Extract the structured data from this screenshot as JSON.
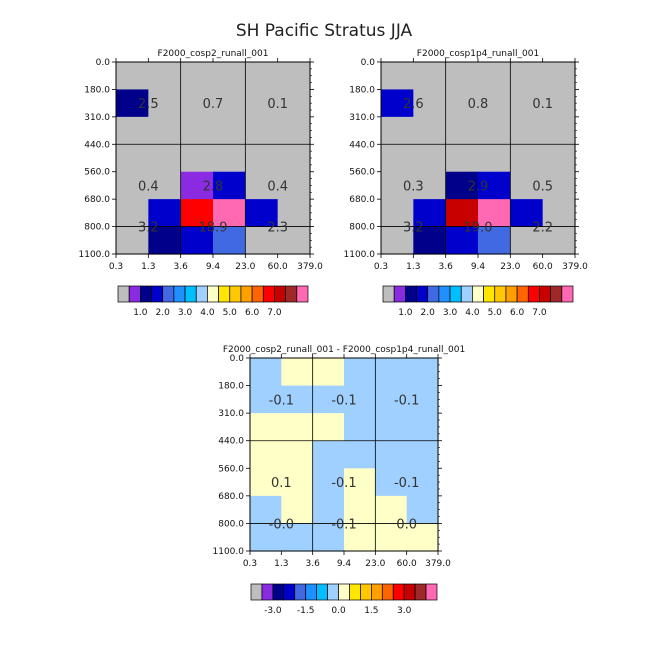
{
  "figure": {
    "title": "SH Pacific Stratus JJA"
  },
  "axes": {
    "ytick_labels": [
      "0.0",
      "180.0",
      "310.0",
      "440.0",
      "560.0",
      "680.0",
      "800.0",
      "1100.0"
    ],
    "xtick_labels": [
      "0.3",
      "1.3",
      "3.6",
      "9.4",
      "23.0",
      "60.0",
      "379.0"
    ]
  },
  "palettes": {
    "abs": [
      "#bebebe",
      "#8a2be2",
      "#00008b",
      "#0000cd",
      "#4169e1",
      "#1e90ff",
      "#00bfff",
      "#a0d0ff",
      "#ffffc8",
      "#ffe600",
      "#ffc800",
      "#ffa000",
      "#ff6400",
      "#ff0000",
      "#c80000",
      "#a02828",
      "#ff69b4"
    ],
    "diff": [
      "#bebebe",
      "#8a2be2",
      "#00008b",
      "#0000cd",
      "#4169e1",
      "#1e90ff",
      "#00bfff",
      "#a0d0ff",
      "#ffffc8",
      "#ffe600",
      "#ffc800",
      "#ffa000",
      "#ff6400",
      "#ff0000",
      "#c80000",
      "#a02828",
      "#ff69b4"
    ]
  },
  "chart_data": [
    {
      "type": "heatmap",
      "title": "F2000_cosp2_runall_001",
      "rows": [
        "0-180",
        "180-310",
        "310-440",
        "440-560",
        "560-680",
        "680-800",
        "800-1100"
      ],
      "cols": [
        "0.3-1.3",
        "1.3-3.6",
        "3.6-9.4",
        "9.4-23",
        "23-60",
        "60-379"
      ],
      "cell_colors": [
        [
          0,
          0,
          0,
          0,
          0,
          0
        ],
        [
          2,
          0,
          0,
          0,
          0,
          0
        ],
        [
          0,
          0,
          0,
          0,
          0,
          0
        ],
        [
          0,
          0,
          0,
          0,
          0,
          0
        ],
        [
          0,
          0,
          1,
          3,
          0,
          0
        ],
        [
          0,
          3,
          13,
          16,
          3,
          0
        ],
        [
          0,
          2,
          3,
          4,
          0,
          0
        ]
      ],
      "annotations": [
        {
          "row": 1.5,
          "col": 1,
          "text": "2.5"
        },
        {
          "row": 1.5,
          "col": 3,
          "text": "0.7"
        },
        {
          "row": 1.5,
          "col": 5,
          "text": "0.1"
        },
        {
          "row": 4.5,
          "col": 1,
          "text": "0.4"
        },
        {
          "row": 4.5,
          "col": 3,
          "text": "2.8"
        },
        {
          "row": 4.5,
          "col": 5,
          "text": "0.4"
        },
        {
          "row": 6.0,
          "col": 1,
          "text": "3.2"
        },
        {
          "row": 6.0,
          "col": 3,
          "text": "18.9"
        },
        {
          "row": 6.0,
          "col": 5,
          "text": "2.3"
        }
      ],
      "colorbar": {
        "labels": [
          "1.0",
          "2.0",
          "3.0",
          "4.0",
          "5.0",
          "6.0",
          "7.0"
        ]
      }
    },
    {
      "type": "heatmap",
      "title": "F2000_cosp1p4_runall_001",
      "rows": [
        "0-180",
        "180-310",
        "310-440",
        "440-560",
        "560-680",
        "680-800",
        "800-1100"
      ],
      "cols": [
        "0.3-1.3",
        "1.3-3.6",
        "3.6-9.4",
        "9.4-23",
        "23-60",
        "60-379"
      ],
      "cell_colors": [
        [
          0,
          0,
          0,
          0,
          0,
          0
        ],
        [
          3,
          0,
          0,
          0,
          0,
          0
        ],
        [
          0,
          0,
          0,
          0,
          0,
          0
        ],
        [
          0,
          0,
          0,
          0,
          0,
          0
        ],
        [
          0,
          0,
          2,
          3,
          0,
          0
        ],
        [
          0,
          3,
          14,
          16,
          3,
          0
        ],
        [
          0,
          2,
          3,
          4,
          0,
          0
        ]
      ],
      "annotations": [
        {
          "row": 1.5,
          "col": 1,
          "text": "2.6"
        },
        {
          "row": 1.5,
          "col": 3,
          "text": "0.8"
        },
        {
          "row": 1.5,
          "col": 5,
          "text": "0.1"
        },
        {
          "row": 4.5,
          "col": 1,
          "text": "0.3"
        },
        {
          "row": 4.5,
          "col": 3,
          "text": "2.9"
        },
        {
          "row": 4.5,
          "col": 5,
          "text": "0.5"
        },
        {
          "row": 6.0,
          "col": 1,
          "text": "3.2"
        },
        {
          "row": 6.0,
          "col": 3,
          "text": "19.0"
        },
        {
          "row": 6.0,
          "col": 5,
          "text": "2.2"
        }
      ],
      "colorbar": {
        "labels": [
          "1.0",
          "2.0",
          "3.0",
          "4.0",
          "5.0",
          "6.0",
          "7.0"
        ]
      }
    },
    {
      "type": "heatmap",
      "title": "F2000_cosp2_runall_001 - F2000_cosp1p4_runall_001",
      "rows": [
        "0-180",
        "180-310",
        "310-440",
        "440-560",
        "560-680",
        "680-800",
        "800-1100"
      ],
      "cols": [
        "0.3-1.3",
        "1.3-3.6",
        "3.6-9.4",
        "9.4-23",
        "23-60",
        "60-379"
      ],
      "cell_colors": [
        [
          7,
          8,
          8,
          7,
          7,
          7
        ],
        [
          7,
          7,
          7,
          7,
          7,
          7
        ],
        [
          8,
          8,
          8,
          7,
          7,
          7
        ],
        [
          8,
          8,
          7,
          7,
          7,
          7
        ],
        [
          8,
          8,
          7,
          8,
          7,
          7
        ],
        [
          7,
          8,
          7,
          8,
          8,
          7
        ],
        [
          7,
          7,
          7,
          8,
          8,
          8
        ]
      ],
      "annotations": [
        {
          "row": 1.5,
          "col": 1,
          "text": "-0.1"
        },
        {
          "row": 1.5,
          "col": 3,
          "text": "-0.1"
        },
        {
          "row": 1.5,
          "col": 5,
          "text": "-0.1"
        },
        {
          "row": 4.5,
          "col": 1,
          "text": "0.1"
        },
        {
          "row": 4.5,
          "col": 3,
          "text": "-0.1"
        },
        {
          "row": 4.5,
          "col": 5,
          "text": "-0.1"
        },
        {
          "row": 6.0,
          "col": 1,
          "text": "-0.0"
        },
        {
          "row": 6.0,
          "col": 3,
          "text": "-0.1"
        },
        {
          "row": 6.0,
          "col": 5,
          "text": "0.0"
        }
      ],
      "colorbar": {
        "labels": [
          "-3.0",
          "-1.5",
          "0.0",
          "1.5",
          "3.0"
        ]
      }
    }
  ]
}
